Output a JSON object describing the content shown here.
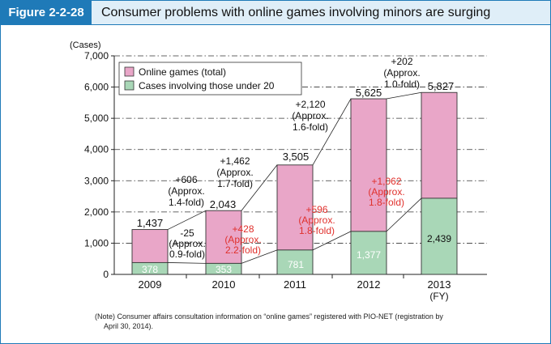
{
  "figure": {
    "label": "Figure 2-2-28",
    "title": "Consumer problems with online games involving minors are surging",
    "note_line1": "(Note) Consumer affairs consultation information on “online games” registered with PIO-NET (registration by",
    "note_line2": "April 30, 2014)."
  },
  "colors": {
    "accent": "#1f7ab8",
    "header_bg": "#dfeef8",
    "total_fill": "#e9a6c8",
    "minors_fill": "#a9d7b7",
    "annot_red": "#e0302c"
  },
  "chart_data": {
    "type": "bar",
    "y_unit": "(Cases)",
    "x_unit": "(FY)",
    "ylim": [
      0,
      7000
    ],
    "yticks": [
      "0",
      "1,000",
      "2,000",
      "3,000",
      "4,000",
      "5,000",
      "6,000",
      "7,000"
    ],
    "grid": "dash-dot horizontal",
    "legend_position": "top-left",
    "categories": [
      "2009",
      "2010",
      "2011",
      "2012",
      "2013"
    ],
    "series": [
      {
        "name": "Online games (total)",
        "values": [
          1437,
          2043,
          3505,
          5625,
          5827
        ],
        "labels": [
          "1,437",
          "2,043",
          "3,505",
          "5,625",
          "5,827"
        ]
      },
      {
        "name": "Cases involving those under 20",
        "values": [
          378,
          353,
          781,
          1377,
          2439
        ],
        "labels": [
          "378",
          "353",
          "781",
          "1,377",
          "2,439"
        ]
      }
    ],
    "annotations_total": [
      {
        "lines": [
          "+606",
          "(Approx.",
          "1.4-fold)"
        ]
      },
      {
        "lines": [
          "+1,462",
          "(Approx.",
          "1.7-fold)"
        ]
      },
      {
        "lines": [
          "+2,120",
          "(Approx.",
          "1.6-fold)"
        ]
      },
      {
        "lines": [
          "+202",
          "(Approx.",
          "1.0-fold)"
        ]
      }
    ],
    "annotations_minors": [
      {
        "lines": [
          "-25",
          "(Approx.",
          "0.9-fold)"
        ]
      },
      {
        "lines": [
          "+428",
          "(Approx.",
          "2.2-fold)"
        ]
      },
      {
        "lines": [
          "+596",
          "(Approx.",
          "1.8-fold)"
        ]
      },
      {
        "lines": [
          "+1,062",
          "(Approx.",
          "1.8-fold)"
        ]
      }
    ]
  }
}
